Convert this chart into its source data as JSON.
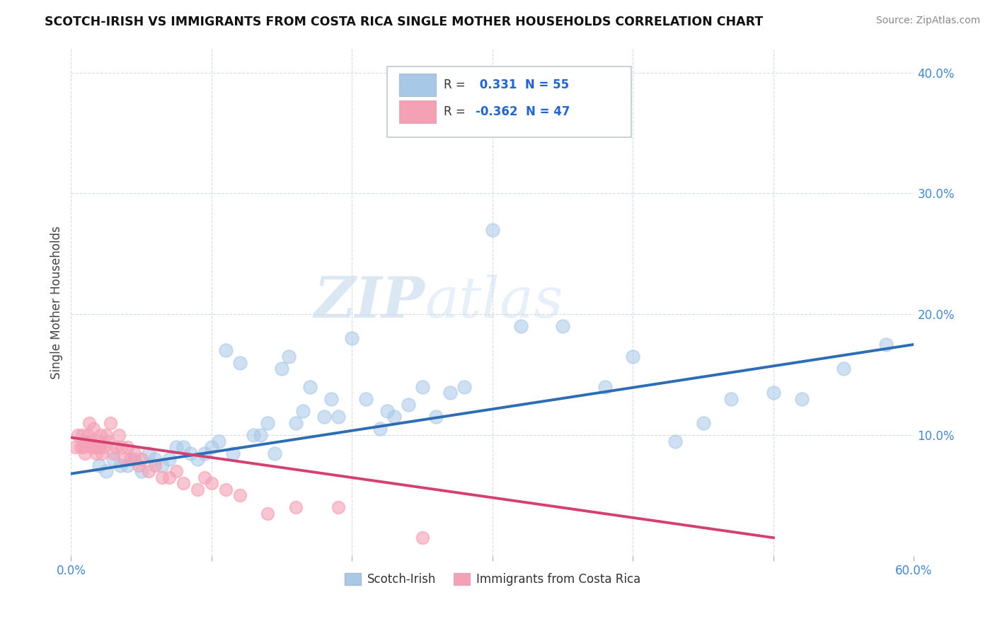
{
  "title": "SCOTCH-IRISH VS IMMIGRANTS FROM COSTA RICA SINGLE MOTHER HOUSEHOLDS CORRELATION CHART",
  "source": "Source: ZipAtlas.com",
  "ylabel": "Single Mother Households",
  "xlim": [
    0.0,
    0.6
  ],
  "ylim": [
    0.0,
    0.42
  ],
  "xticks": [
    0.0,
    0.1,
    0.2,
    0.3,
    0.4,
    0.5,
    0.6
  ],
  "yticks": [
    0.1,
    0.2,
    0.3,
    0.4
  ],
  "xticklabels": [
    "0.0%",
    "",
    "",
    "",
    "",
    "",
    "60.0%"
  ],
  "yticklabels": [
    "10.0%",
    "20.0%",
    "30.0%",
    "40.0%"
  ],
  "blue_color": "#a8c8e8",
  "pink_color": "#f4a0b5",
  "blue_line_color": "#2e6db4",
  "pink_line_color": "#d44070",
  "legend_R_blue": "0.331",
  "legend_N_blue": "55",
  "legend_R_pink": "-0.362",
  "legend_N_pink": "47",
  "legend_label_blue": "Scotch-Irish",
  "legend_label_pink": "Immigrants from Costa Rica",
  "watermark_zip": "ZIP",
  "watermark_atlas": "atlas",
  "blue_scatter_x": [
    0.02,
    0.025,
    0.03,
    0.035,
    0.04,
    0.045,
    0.05,
    0.055,
    0.06,
    0.065,
    0.07,
    0.075,
    0.08,
    0.085,
    0.09,
    0.095,
    0.1,
    0.105,
    0.11,
    0.115,
    0.12,
    0.13,
    0.135,
    0.14,
    0.145,
    0.15,
    0.155,
    0.16,
    0.165,
    0.17,
    0.18,
    0.185,
    0.19,
    0.2,
    0.21,
    0.22,
    0.225,
    0.23,
    0.24,
    0.25,
    0.26,
    0.27,
    0.28,
    0.3,
    0.32,
    0.35,
    0.38,
    0.4,
    0.43,
    0.45,
    0.47,
    0.5,
    0.52,
    0.55,
    0.58
  ],
  "blue_scatter_y": [
    0.075,
    0.07,
    0.08,
    0.075,
    0.075,
    0.08,
    0.07,
    0.085,
    0.08,
    0.075,
    0.08,
    0.09,
    0.09,
    0.085,
    0.08,
    0.085,
    0.09,
    0.095,
    0.17,
    0.085,
    0.16,
    0.1,
    0.1,
    0.11,
    0.085,
    0.155,
    0.165,
    0.11,
    0.12,
    0.14,
    0.115,
    0.13,
    0.115,
    0.18,
    0.13,
    0.105,
    0.12,
    0.115,
    0.125,
    0.14,
    0.115,
    0.135,
    0.14,
    0.27,
    0.19,
    0.19,
    0.14,
    0.165,
    0.095,
    0.11,
    0.13,
    0.135,
    0.13,
    0.155,
    0.175
  ],
  "pink_scatter_x": [
    0.003,
    0.005,
    0.007,
    0.008,
    0.009,
    0.01,
    0.011,
    0.012,
    0.013,
    0.014,
    0.015,
    0.016,
    0.017,
    0.018,
    0.019,
    0.02,
    0.021,
    0.022,
    0.023,
    0.025,
    0.026,
    0.028,
    0.03,
    0.032,
    0.034,
    0.036,
    0.038,
    0.04,
    0.042,
    0.045,
    0.048,
    0.05,
    0.055,
    0.06,
    0.065,
    0.07,
    0.075,
    0.08,
    0.09,
    0.095,
    0.1,
    0.11,
    0.12,
    0.14,
    0.16,
    0.19,
    0.25
  ],
  "pink_scatter_y": [
    0.09,
    0.1,
    0.09,
    0.1,
    0.09,
    0.085,
    0.095,
    0.1,
    0.11,
    0.095,
    0.09,
    0.105,
    0.09,
    0.085,
    0.095,
    0.09,
    0.1,
    0.085,
    0.09,
    0.1,
    0.095,
    0.11,
    0.085,
    0.09,
    0.1,
    0.09,
    0.08,
    0.09,
    0.08,
    0.085,
    0.075,
    0.08,
    0.07,
    0.075,
    0.065,
    0.065,
    0.07,
    0.06,
    0.055,
    0.065,
    0.06,
    0.055,
    0.05,
    0.035,
    0.04,
    0.04,
    0.015
  ],
  "blue_trend_x": [
    0.0,
    0.6
  ],
  "blue_trend_y": [
    0.068,
    0.175
  ],
  "pink_trend_x": [
    0.0,
    0.5
  ],
  "pink_trend_y": [
    0.098,
    0.015
  ],
  "background_color": "#ffffff",
  "grid_color": "#d0d8e0"
}
